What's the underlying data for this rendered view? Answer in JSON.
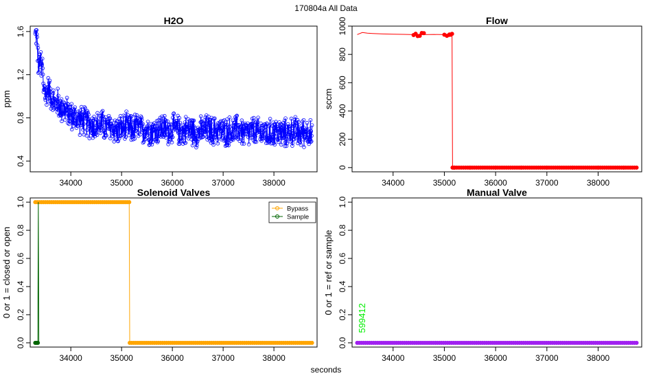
{
  "page": {
    "suptitle": "170804a   All Data",
    "xlabel": "seconds"
  },
  "chart_data": [
    {
      "id": "h2o",
      "type": "line",
      "title": "H2O",
      "xlabel": "",
      "ylabel": "ppm",
      "xlim": [
        33200,
        38850
      ],
      "ylim": [
        0.3,
        1.65
      ],
      "xticks": [
        34000,
        35000,
        36000,
        37000,
        38000
      ],
      "yticks": [
        0.4,
        0.8,
        1.2,
        1.6
      ],
      "ytick_labels": [
        "0.4",
        "0.8",
        "1.2",
        "1.6"
      ],
      "series": [
        {
          "color": "#0000ff",
          "marker": "open-circle",
          "x": [
            33300,
            33320,
            33340,
            33360,
            33380,
            33400,
            33420,
            33440,
            33460,
            33480,
            33500,
            33550,
            33600,
            33650,
            33700,
            33750,
            33800,
            33850,
            33900,
            33950,
            34000,
            34100,
            34200,
            34300,
            34400,
            34500,
            34600,
            34700,
            34800,
            34900,
            35000,
            35100,
            35200,
            35300,
            35400,
            35500,
            35600,
            35700,
            35800,
            35900,
            36000,
            36100,
            36200,
            36300,
            36400,
            36500,
            36600,
            36700,
            36800,
            36900,
            37000,
            37100,
            37200,
            37300,
            37400,
            37500,
            37600,
            37700,
            37800,
            37900,
            38000,
            38100,
            38200,
            38300,
            38400,
            38500,
            38600,
            38700,
            38750
          ],
          "y": [
            1.55,
            1.58,
            1.48,
            1.3,
            1.25,
            1.4,
            1.2,
            1.32,
            1.05,
            1.12,
            0.98,
            1.08,
            1.02,
            0.97,
            0.92,
            0.95,
            0.88,
            0.9,
            0.86,
            0.85,
            0.82,
            0.8,
            0.78,
            0.76,
            0.74,
            0.72,
            0.75,
            0.7,
            0.72,
            0.68,
            0.7,
            0.71,
            0.69,
            0.72,
            0.68,
            0.7,
            0.67,
            0.69,
            0.71,
            0.68,
            0.7,
            0.69,
            0.67,
            0.7,
            0.68,
            0.66,
            0.68,
            0.7,
            0.67,
            0.69,
            0.66,
            0.68,
            0.67,
            0.7,
            0.66,
            0.65,
            0.68,
            0.66,
            0.67,
            0.64,
            0.68,
            0.66,
            0.65,
            0.67,
            0.68,
            0.65,
            0.67,
            0.68,
            0.6
          ]
        }
      ]
    },
    {
      "id": "flow",
      "type": "line",
      "title": "Flow",
      "xlabel": "",
      "ylabel": "sccm",
      "xlim": [
        33200,
        38850
      ],
      "ylim": [
        -30,
        1000
      ],
      "xticks": [
        34000,
        35000,
        36000,
        37000,
        38000
      ],
      "yticks": [
        0,
        200,
        400,
        600,
        800,
        1000
      ],
      "ytick_labels": [
        "0",
        "200",
        "400",
        "600",
        "800",
        "1000"
      ],
      "series": [
        {
          "color": "#ff0000",
          "marker": "filled-circle",
          "x": [
            33300,
            33400,
            33500,
            33600,
            33800,
            34000,
            34200,
            34400,
            34600,
            34800,
            35000,
            35100,
            35150,
            35160,
            35200,
            35500,
            36000,
            36500,
            37000,
            37500,
            38000,
            38500,
            38750
          ],
          "y": [
            940,
            955,
            950,
            948,
            945,
            943,
            942,
            940,
            940,
            941,
            940,
            940,
            940,
            0,
            0,
            0,
            0,
            0,
            0,
            0,
            0,
            0,
            0
          ]
        }
      ]
    },
    {
      "id": "solenoid",
      "type": "line",
      "title": "Solenoid Valves",
      "xlabel": "",
      "ylabel": "0 or 1 = closed or open",
      "xlim": [
        33200,
        38850
      ],
      "ylim": [
        -0.03,
        1.03
      ],
      "xticks": [
        34000,
        35000,
        36000,
        37000,
        38000
      ],
      "yticks": [
        0.0,
        0.2,
        0.4,
        0.6,
        0.8,
        1.0
      ],
      "ytick_labels": [
        "0.0",
        "0.2",
        "0.4",
        "0.6",
        "0.8",
        "1.0"
      ],
      "legend": {
        "position": "top-right",
        "entries": [
          "Bypass",
          "Sample"
        ]
      },
      "series": [
        {
          "name": "Bypass",
          "color": "#ffa500",
          "marker": "filled-circle",
          "x": [
            33300,
            35150,
            35160,
            38750
          ],
          "y": [
            1,
            1,
            0,
            0
          ]
        },
        {
          "name": "Sample",
          "color": "#006400",
          "marker": "filled-circle",
          "x": [
            33300,
            33350,
            33360,
            33370
          ],
          "y": [
            0,
            0,
            1,
            0
          ]
        }
      ]
    },
    {
      "id": "manual",
      "type": "line",
      "title": "Manual Valve",
      "xlabel": "",
      "ylabel": "0 or 1 = ref or sample",
      "xlim": [
        33200,
        38850
      ],
      "ylim": [
        -0.03,
        1.03
      ],
      "xticks": [
        34000,
        35000,
        36000,
        37000,
        38000
      ],
      "yticks": [
        0.0,
        0.2,
        0.4,
        0.6,
        0.8,
        1.0
      ],
      "ytick_labels": [
        "0.0",
        "0.2",
        "0.4",
        "0.6",
        "0.8",
        "1.0"
      ],
      "annotation": {
        "text": "599412",
        "x": 33400,
        "y": 0.07,
        "color": "#00ee00"
      },
      "series": [
        {
          "color": "#a020f0",
          "marker": "filled-circle",
          "x": [
            33300,
            38750
          ],
          "y": [
            0,
            0
          ]
        }
      ]
    }
  ]
}
